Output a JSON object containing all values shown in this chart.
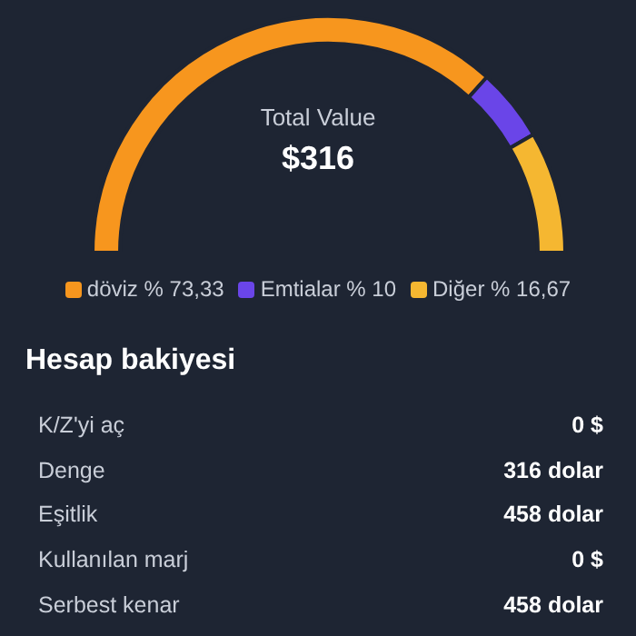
{
  "chart_data": [
    {
      "type": "donut",
      "categories": [
        "döviz",
        "Emtialar",
        "Diğer"
      ],
      "values": [
        73.33,
        10,
        16.67
      ],
      "colors": [
        "#f7961e",
        "#6a45e8",
        "#f5b731"
      ],
      "value_labels": [
        "% 73,33",
        "% 10",
        "% 16,67"
      ],
      "annotations": [
        "Total Value",
        "$316"
      ],
      "legend": "bottom"
    },
    {
      "type": "other",
      "title": "Hesap bakiyesi",
      "annotations": [
        "K/Z'yi aç",
        "0 $",
        "Denge",
        "316 dolar",
        "Eşitlik",
        "458 dolar",
        "Kullanılan marj",
        "0 $",
        "Serbest kenar",
        "458 dolar"
      ]
    }
  ]
}
